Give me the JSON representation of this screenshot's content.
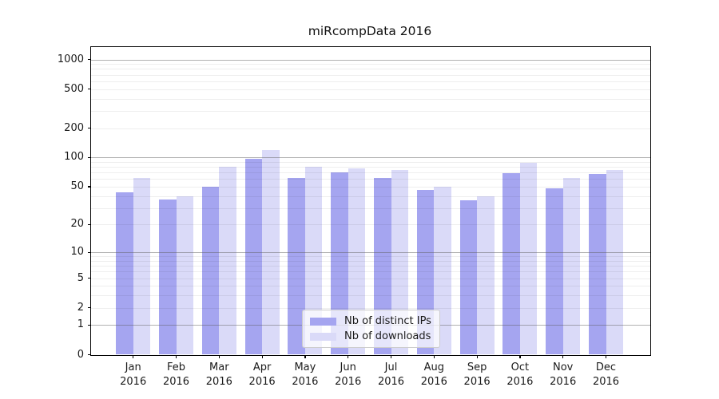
{
  "chart_data": {
    "type": "bar",
    "title": "miRcompData 2016",
    "categories": [
      "Jan",
      "Feb",
      "Mar",
      "Apr",
      "May",
      "Jun",
      "Jul",
      "Aug",
      "Sep",
      "Oct",
      "Nov",
      "Dec"
    ],
    "category_year": "2016",
    "series": [
      {
        "name": "Nb of distinct IPs",
        "color": "#a5a5f0",
        "values": [
          44,
          37,
          50,
          97,
          62,
          70,
          62,
          46,
          36,
          69,
          48,
          68
        ]
      },
      {
        "name": "Nb of downloads",
        "color": "#dadaf8",
        "values": [
          61,
          40,
          80,
          119,
          81,
          77,
          74,
          50,
          40,
          88,
          62,
          74
        ]
      }
    ],
    "y_scale": "log1p",
    "y_ticks": [
      0,
      1,
      2,
      5,
      10,
      20,
      50,
      100,
      200,
      500,
      1000
    ],
    "y_major_gridlines": [
      1,
      10,
      100,
      1000
    ],
    "y_minor_gridlines": [
      2,
      3,
      4,
      5,
      6,
      7,
      8,
      9,
      20,
      30,
      40,
      50,
      60,
      70,
      80,
      90,
      200,
      300,
      400,
      500,
      600,
      700,
      800,
      900
    ],
    "ylim": [
      0,
      1000
    ],
    "grid": true,
    "legend_position": "lower center"
  }
}
